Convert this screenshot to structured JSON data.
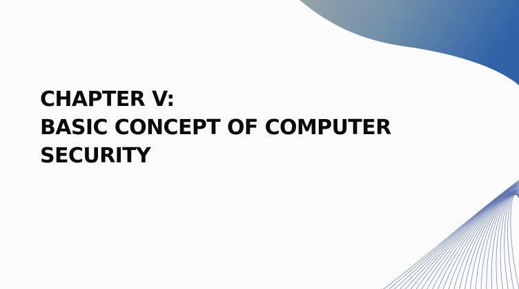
{
  "slide": {
    "title_lines": [
      "CHAPTER V:",
      "BASIC CONCEPT OF COMPUTER",
      "SECURITY"
    ]
  },
  "theme": {
    "background": "#fbfbfc",
    "title_color": "#0b0b0b",
    "gradient_start": "#97a3a8",
    "gradient_end": "#2f63a8",
    "line_color": "#4c63a6"
  },
  "decorations": [
    "gradient-wave-shape",
    "wave-line-pattern"
  ]
}
